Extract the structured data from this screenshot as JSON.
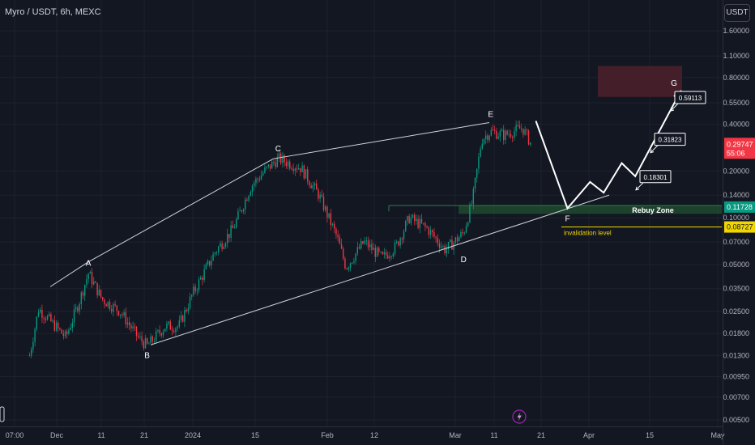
{
  "header": {
    "symbol": "Myro / USDT, 6h, MEXC",
    "currency": "USDT"
  },
  "yaxis": {
    "scale": "log",
    "ticks": [
      "1.60000",
      "1.10000",
      "0.80000",
      "0.55000",
      "0.40000",
      "0.20000",
      "0.14000",
      "0.10000",
      "0.07000",
      "0.05000",
      "0.03500",
      "0.02500",
      "0.01800",
      "0.01300",
      "0.00950",
      "0.00700",
      "0.00500"
    ],
    "tick_values": [
      1.6,
      1.1,
      0.8,
      0.55,
      0.4,
      0.2,
      0.14,
      0.1,
      0.07,
      0.05,
      0.035,
      0.025,
      0.018,
      0.013,
      0.0095,
      0.007,
      0.005
    ]
  },
  "xaxis": {
    "ticks": [
      "07:00",
      "Dec",
      "11",
      "21",
      "2024",
      "15",
      "Feb",
      "12",
      "Mar",
      "11",
      "21",
      "Apr",
      "15",
      "May"
    ]
  },
  "price_labels": {
    "current": {
      "value": "0.29747",
      "countdown": "55:06",
      "color": "#f23645",
      "num": 0.29747
    },
    "rebuy": {
      "value": "0.11728",
      "color": "#089981",
      "num": 0.11728
    },
    "invalidation": {
      "value": "0.08727",
      "color": "#f2d600",
      "num": 0.08727
    }
  },
  "wave_labels": [
    "A",
    "B",
    "C",
    "D",
    "E",
    "F",
    "G"
  ],
  "target_labels": [
    {
      "value": "0.59113",
      "num": 0.59113
    },
    {
      "value": "0.31823",
      "num": 0.31823
    },
    {
      "value": "0.18301",
      "num": 0.18301
    }
  ],
  "zone_labels": {
    "rebuy": "Rebuy Zone",
    "invalidation": "invalidation level"
  },
  "colors": {
    "up": "#089981",
    "down": "#f23645",
    "projection": "#ffffff",
    "target_box": "#4a1f2a",
    "rebuy_zone": "#1f4a2e",
    "invalidation": "#f2d600"
  },
  "chart_data": {
    "type": "candlestick",
    "pair": "Myro / USDT",
    "interval": "6h",
    "exchange": "MEXC",
    "y_scale": "log",
    "price_series": [
      {
        "date": "2023-11-25",
        "price": 0.013
      },
      {
        "date": "2023-11-27",
        "price": 0.026
      },
      {
        "date": "2023-11-30",
        "price": 0.021
      },
      {
        "date": "2023-12-03",
        "price": 0.017
      },
      {
        "date": "2023-12-06",
        "price": 0.029
      },
      {
        "date": "2023-12-08",
        "price": 0.044
      },
      {
        "date": "2023-12-11",
        "price": 0.03
      },
      {
        "date": "2023-12-15",
        "price": 0.025
      },
      {
        "date": "2023-12-19",
        "price": 0.017
      },
      {
        "date": "2023-12-21",
        "price": 0.015
      },
      {
        "date": "2023-12-25",
        "price": 0.02
      },
      {
        "date": "2023-12-28",
        "price": 0.02
      },
      {
        "date": "2023-12-31",
        "price": 0.032
      },
      {
        "date": "2024-01-05",
        "price": 0.06
      },
      {
        "date": "2024-01-09",
        "price": 0.085
      },
      {
        "date": "2024-01-13",
        "price": 0.16
      },
      {
        "date": "2024-01-16",
        "price": 0.2
      },
      {
        "date": "2024-01-19",
        "price": 0.24
      },
      {
        "date": "2024-01-24",
        "price": 0.21
      },
      {
        "date": "2024-01-28",
        "price": 0.14
      },
      {
        "date": "2024-02-01",
        "price": 0.075
      },
      {
        "date": "2024-02-03",
        "price": 0.048
      },
      {
        "date": "2024-02-07",
        "price": 0.07
      },
      {
        "date": "2024-02-11",
        "price": 0.055
      },
      {
        "date": "2024-02-14",
        "price": 0.065
      },
      {
        "date": "2024-02-17",
        "price": 0.1
      },
      {
        "date": "2024-02-21",
        "price": 0.085
      },
      {
        "date": "2024-02-25",
        "price": 0.062
      },
      {
        "date": "2024-02-29",
        "price": 0.08
      },
      {
        "date": "2024-03-02",
        "price": 0.13
      },
      {
        "date": "2024-03-04",
        "price": 0.32
      },
      {
        "date": "2024-03-06",
        "price": 0.36
      },
      {
        "date": "2024-03-09",
        "price": 0.34
      },
      {
        "date": "2024-03-13",
        "price": 0.38
      },
      {
        "date": "2024-03-15",
        "price": 0.297
      }
    ],
    "wave_points": [
      {
        "label": "A",
        "date": "2023-12-08",
        "price": 0.044
      },
      {
        "label": "B",
        "date": "2023-12-21",
        "price": 0.015
      },
      {
        "label": "C",
        "date": "2024-01-19",
        "price": 0.24
      },
      {
        "label": "D",
        "date": "2024-02-29",
        "price": 0.062
      },
      {
        "label": "E",
        "date": "2024-03-06",
        "price": 0.4
      },
      {
        "label": "F",
        "date": "2024-03-23",
        "price": 0.115
      },
      {
        "label": "G",
        "date": "2024-04-17",
        "price": 0.65
      }
    ],
    "projection_path": [
      {
        "date": "2024-03-16",
        "price": 0.42
      },
      {
        "date": "2024-03-23",
        "price": 0.115
      },
      {
        "date": "2024-03-28",
        "price": 0.17
      },
      {
        "date": "2024-03-31",
        "price": 0.145
      },
      {
        "date": "2024-04-04",
        "price": 0.225
      },
      {
        "date": "2024-04-07",
        "price": 0.185
      },
      {
        "date": "2024-04-17",
        "price": 0.65
      }
    ],
    "targets": [
      0.59113,
      0.31823,
      0.18301
    ],
    "rebuy_zone": [
      0.106,
      0.12
    ],
    "invalidation_level": 0.08727,
    "current_price": 0.29747
  }
}
